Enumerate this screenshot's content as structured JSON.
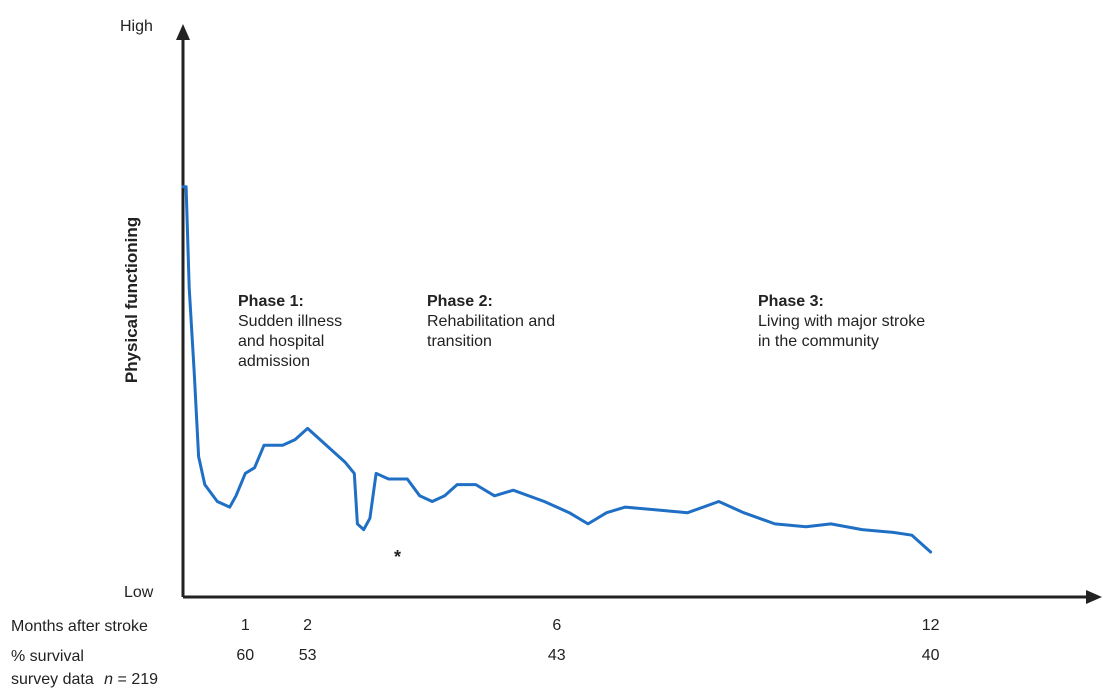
{
  "chart_data": {
    "type": "line",
    "y_axis": {
      "label": "Physical functioning",
      "high_label": "High",
      "low_label": "Low"
    },
    "x_axis": {
      "row_label": "Months after stroke",
      "ticks": [
        {
          "month": 1,
          "survival": "60"
        },
        {
          "month": 2,
          "survival": "53"
        },
        {
          "month": 6,
          "survival": "43"
        },
        {
          "month": 12,
          "survival": "40"
        }
      ],
      "survival_label": "% survival",
      "survey_note": "survey data",
      "survey_n_symbol": "n",
      "survey_n_value": "= 219"
    },
    "series": [
      {
        "color": "#1f6fc5",
        "points": [
          [
            0,
            0.73
          ],
          [
            0.05,
            0.73
          ],
          [
            0.1,
            0.55
          ],
          [
            0.18,
            0.4
          ],
          [
            0.25,
            0.25
          ],
          [
            0.35,
            0.2
          ],
          [
            0.55,
            0.17
          ],
          [
            0.75,
            0.16
          ],
          [
            0.85,
            0.18
          ],
          [
            1.0,
            0.22
          ],
          [
            1.15,
            0.23
          ],
          [
            1.3,
            0.27
          ],
          [
            1.6,
            0.27
          ],
          [
            1.8,
            0.28
          ],
          [
            2.0,
            0.3
          ],
          [
            2.3,
            0.27
          ],
          [
            2.6,
            0.24
          ],
          [
            2.75,
            0.22
          ],
          [
            2.8,
            0.13
          ],
          [
            2.9,
            0.12
          ],
          [
            3.0,
            0.14
          ],
          [
            3.1,
            0.22
          ],
          [
            3.3,
            0.21
          ],
          [
            3.6,
            0.21
          ],
          [
            3.8,
            0.18
          ],
          [
            4.0,
            0.17
          ],
          [
            4.2,
            0.18
          ],
          [
            4.4,
            0.2
          ],
          [
            4.7,
            0.2
          ],
          [
            5.0,
            0.18
          ],
          [
            5.3,
            0.19
          ],
          [
            5.8,
            0.17
          ],
          [
            6.2,
            0.15
          ],
          [
            6.5,
            0.13
          ],
          [
            6.8,
            0.15
          ],
          [
            7.1,
            0.16
          ],
          [
            7.6,
            0.155
          ],
          [
            8.1,
            0.15
          ],
          [
            8.6,
            0.17
          ],
          [
            9.0,
            0.15
          ],
          [
            9.5,
            0.13
          ],
          [
            10.0,
            0.125
          ],
          [
            10.4,
            0.13
          ],
          [
            10.9,
            0.12
          ],
          [
            11.4,
            0.115
          ],
          [
            11.7,
            0.11
          ],
          [
            12.0,
            0.08
          ]
        ]
      }
    ],
    "phases": [
      {
        "title": "Phase 1:",
        "lines": [
          "Sudden illness",
          "and hospital",
          "admission"
        ]
      },
      {
        "title": "Phase 2:",
        "lines": [
          "Rehabilitation and",
          "transition"
        ]
      },
      {
        "title": "Phase 3:",
        "lines": [
          "Living with major stroke",
          "in the community"
        ]
      }
    ],
    "annotation": "*",
    "xlim": [
      0,
      14
    ],
    "ylim": [
      0,
      1
    ],
    "grid": false,
    "legend": "none"
  }
}
